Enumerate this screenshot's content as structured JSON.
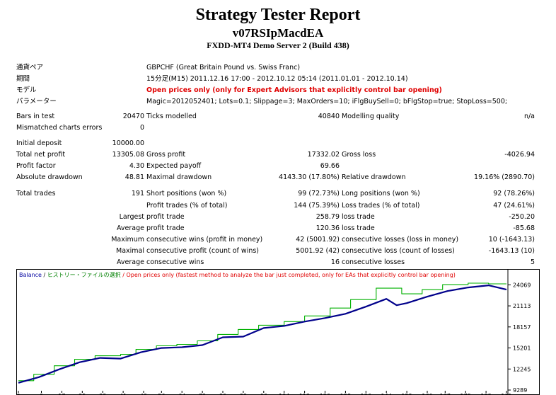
{
  "header": {
    "title": "Strategy Tester Report",
    "ea_name": "v07RSIpMacdEA",
    "server": "FXDD-MT4 Demo Server 2 (Build 438)"
  },
  "settings": [
    {
      "label": "通貨ペア",
      "value": "GBPCHF (Great Britain Pound vs. Swiss Franc)",
      "highlight": false
    },
    {
      "label": "期間",
      "value": "15分足(M15) 2011.12.16 17:00 - 2012.10.12 05:14 (2011.01.01 - 2012.10.14)",
      "highlight": false
    },
    {
      "label": "モデル",
      "value": "Open prices only (only for Expert Advisors that explicitly control bar opening)",
      "highlight": true
    },
    {
      "label": "パラメーター",
      "value": "Magic=2012052401; Lots=0.1; Slippage=3; MaxOrders=10; iFlgBuySell=0; bFlgStop=true; StopLoss=500;",
      "highlight": false
    }
  ],
  "stats": {
    "bars_label": "Bars in test",
    "bars": "20470",
    "ticks_label": "Ticks modelled",
    "ticks": "40840",
    "quality_label": "Modelling quality",
    "quality": "n/a",
    "mismatch_label": "Mismatched charts errors",
    "mismatch": "0",
    "deposit_label": "Initial deposit",
    "deposit": "10000.00",
    "net_label": "Total net profit",
    "net": "13305.08",
    "gross_profit_label": "Gross profit",
    "gross_profit": "17332.02",
    "gross_loss_label": "Gross loss",
    "gross_loss": "-4026.94",
    "pf_label": "Profit factor",
    "pf": "4.30",
    "payoff_label": "Expected payoff",
    "payoff": "69.66",
    "abs_dd_label": "Absolute drawdown",
    "abs_dd": "48.81",
    "max_dd_label": "Maximal drawdown",
    "max_dd": "4143.30 (17.80%)",
    "rel_dd_label": "Relative drawdown",
    "rel_dd": "19.16% (2890.70)",
    "trades_label": "Total trades",
    "trades": "191",
    "short_label": "Short positions (won %)",
    "short": "99 (72.73%)",
    "long_label": "Long positions (won %)",
    "long": "92 (78.26%)",
    "ptrades_label": "Profit trades (% of total)",
    "ptrades": "144 (75.39%)",
    "ltrades_label": "Loss trades (% of total)",
    "ltrades": "47 (24.61%)",
    "largest_label": "Largest",
    "largest_profit_label": "profit trade",
    "largest_profit": "258.79",
    "largest_loss_label": "loss trade",
    "largest_loss": "-250.20",
    "average_label": "Average",
    "avg_profit_label": "profit trade",
    "avg_profit": "120.36",
    "avg_loss_label": "loss trade",
    "avg_loss": "-85.68",
    "max_label": "Maximum",
    "max_wins_label": "consecutive wins (profit in money)",
    "max_wins": "42 (5001.92)",
    "max_losses_label": "consecutive losses (loss in money)",
    "max_losses": "10 (-1643.13)",
    "maximal_label": "Maximal",
    "maximal_profit_label": "consecutive profit (count of wins)",
    "maximal_profit": "5001.92 (42)",
    "maximal_loss_label": "consecutive loss (count of losses)",
    "maximal_loss": "-1643.13 (10)",
    "avgc_label": "Average",
    "avg_wins_label": "consecutive wins",
    "avg_wins": "16",
    "avg_losses_label": "consecutive losses",
    "avg_losses": "5"
  },
  "chart": {
    "legend_balance": "Balance",
    "legend_sep": " / ",
    "legend_history": "ヒストリー・ファイルの選択",
    "legend_model": " / Open prices only (fastest method to analyze the bar just completed, only for EAs that explicitly control bar opening)"
  },
  "chart_data": {
    "type": "line",
    "ylim": [
      9289,
      25000
    ],
    "xlim": [
      0,
      191
    ],
    "y_ticks": [
      "24069",
      "21113",
      "18157",
      "15201",
      "12245",
      "9289"
    ],
    "y_tick_values": [
      24069,
      21113,
      18157,
      15201,
      12245,
      9289
    ],
    "x_ticks": [
      "0",
      "9",
      "17",
      "25",
      "33",
      "41",
      "49",
      "56",
      "64",
      "72",
      "80",
      "88",
      "96",
      "104",
      "112",
      "120",
      "128",
      "136",
      "144",
      "152",
      "160",
      "167",
      "175",
      "183",
      "191"
    ],
    "series": [
      {
        "name": "Balance",
        "color": "#00008b",
        "x": [
          0,
          8,
          16,
          24,
          32,
          40,
          48,
          56,
          64,
          72,
          80,
          88,
          96,
          104,
          112,
          120,
          128,
          136,
          144,
          148,
          152,
          160,
          168,
          176,
          184,
          191
        ],
        "y": [
          10300,
          11100,
          12200,
          13200,
          13800,
          13700,
          14600,
          15200,
          15300,
          15600,
          16700,
          16800,
          18000,
          18300,
          18900,
          19400,
          20000,
          21000,
          22100,
          21200,
          21500,
          22400,
          23200,
          23700,
          24000,
          23400
        ]
      },
      {
        "name": "Equity",
        "color": "#00b000",
        "x": [
          0,
          6,
          6,
          14,
          14,
          22,
          22,
          30,
          30,
          40,
          40,
          46,
          46,
          54,
          54,
          62,
          62,
          70,
          70,
          78,
          78,
          86,
          86,
          94,
          94,
          104,
          104,
          112,
          112,
          122,
          122,
          130,
          130,
          140,
          140,
          150,
          150,
          158,
          158,
          166,
          166,
          176,
          176,
          184,
          184,
          191
        ],
        "y": [
          10600,
          10600,
          11500,
          11500,
          12700,
          12700,
          13600,
          13600,
          14100,
          14100,
          14300,
          14300,
          15000,
          15000,
          15500,
          15500,
          15700,
          15700,
          16200,
          16200,
          17100,
          17100,
          17800,
          17800,
          18400,
          18400,
          18900,
          18900,
          19700,
          19700,
          20800,
          20800,
          22000,
          22000,
          23600,
          23600,
          22800,
          22800,
          23400,
          23400,
          24100,
          24100,
          24300,
          24300,
          24200,
          24200
        ]
      }
    ]
  }
}
